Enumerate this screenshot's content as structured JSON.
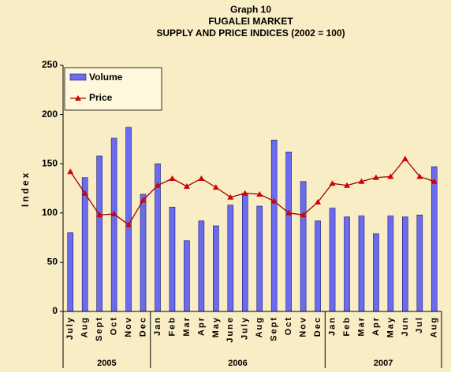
{
  "chart_data": {
    "type": "bar_line",
    "title": [
      "Graph 10",
      "FUGALEI MARKET",
      "SUPPLY AND PRICE INDICES (2002 = 100)"
    ],
    "y_label": "Index",
    "categories": [
      "July",
      "Aug",
      "Sept",
      "Oct",
      "Nov",
      "Dec",
      "Jan",
      "Feb",
      "Mar",
      "Apr",
      "May",
      "June",
      "July",
      "Aug",
      "Sept",
      "Oct",
      "Nov",
      "Dec",
      "Jan",
      "Feb",
      "Mar",
      "Apr",
      "May",
      "Jun",
      "Jul",
      "Aug"
    ],
    "x_groups": [
      {
        "label": "2005",
        "span": 6
      },
      {
        "label": "2006",
        "span": 12
      },
      {
        "label": "2007",
        "span": 8
      }
    ],
    "series": [
      {
        "name": "Volume",
        "type": "bar",
        "color": "#6b6bf0",
        "values": [
          80,
          136,
          158,
          176,
          187,
          119,
          150,
          106,
          72,
          92,
          87,
          108,
          120,
          107,
          174,
          162,
          132,
          92,
          105,
          96,
          97,
          79,
          97,
          96,
          98,
          147
        ]
      },
      {
        "name": "Price",
        "type": "line",
        "color": "#a00000",
        "values": [
          142,
          120,
          98,
          99,
          88,
          113,
          128,
          135,
          127,
          135,
          126,
          116,
          120,
          119,
          112,
          100,
          98,
          111,
          130,
          128,
          132,
          136,
          137,
          155,
          137,
          132
        ]
      }
    ],
    "ylim": [
      0,
      250
    ],
    "yticks": [
      0,
      50,
      100,
      150,
      200,
      250
    ],
    "legend": "upper left",
    "grid": false
  }
}
